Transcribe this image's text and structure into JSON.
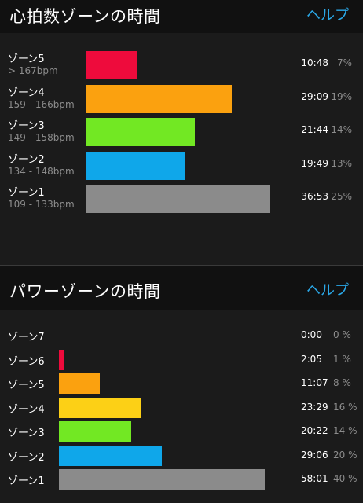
{
  "heart": {
    "title": "心拍数ゾーンの時間",
    "help": "ヘルプ",
    "zones": [
      {
        "label": "ゾーン5",
        "range": "> 167bpm",
        "time": "10:48",
        "percent": "7%",
        "fraction": 0.28,
        "color": "#ee0b3c"
      },
      {
        "label": "ゾーン4",
        "range": "159 - 166bpm",
        "time": "29:09",
        "percent": "19%",
        "fraction": 0.79,
        "color": "#fba10f"
      },
      {
        "label": "ゾーン3",
        "range": "149 - 158bpm",
        "time": "21:44",
        "percent": "14%",
        "fraction": 0.59,
        "color": "#72e823"
      },
      {
        "label": "ゾーン2",
        "range": "134 - 148bpm",
        "time": "19:49",
        "percent": "13%",
        "fraction": 0.54,
        "color": "#0fa7ea"
      },
      {
        "label": "ゾーン1",
        "range": "109 - 133bpm",
        "time": "36:53",
        "percent": "25%",
        "fraction": 1.0,
        "color": "#8b8b8b"
      }
    ]
  },
  "power": {
    "title": "パワーゾーンの時間",
    "help": "ヘルプ",
    "zones": [
      {
        "label": "ゾーン7",
        "time": "0:00",
        "percent": "0 %",
        "fraction": 0.0,
        "color": "#ee0b3c"
      },
      {
        "label": "ゾーン6",
        "time": "2:05",
        "percent": "1 %",
        "fraction": 0.02,
        "color": "#ee0b3c"
      },
      {
        "label": "ゾーン5",
        "time": "11:07",
        "percent": "8 %",
        "fraction": 0.2,
        "color": "#fba10f"
      },
      {
        "label": "ゾーン4",
        "time": "23:29",
        "percent": "16 %",
        "fraction": 0.4,
        "color": "#fcd016"
      },
      {
        "label": "ゾーン3",
        "time": "20:22",
        "percent": "14 %",
        "fraction": 0.35,
        "color": "#72e823"
      },
      {
        "label": "ゾーン2",
        "time": "29:06",
        "percent": "20 %",
        "fraction": 0.5,
        "color": "#0fa7ea"
      },
      {
        "label": "ゾーン1",
        "time": "58:01",
        "percent": "40 %",
        "fraction": 1.0,
        "color": "#8b8b8b"
      }
    ]
  }
}
